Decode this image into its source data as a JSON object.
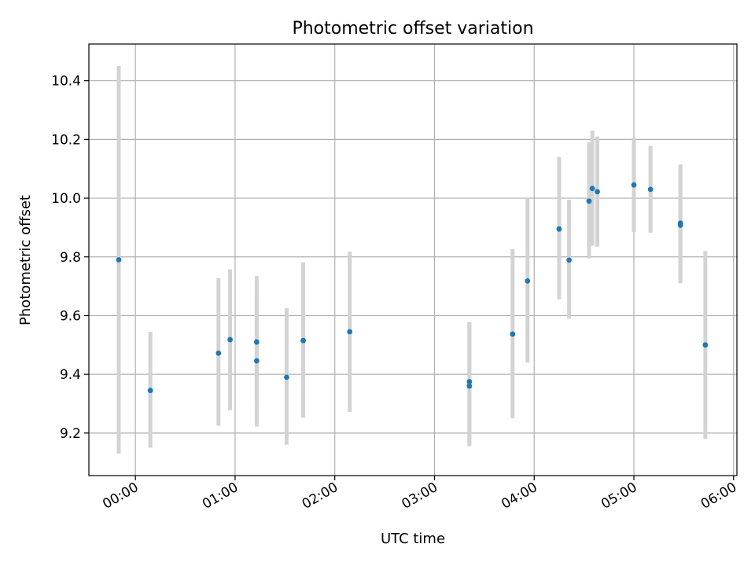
{
  "chart_data": {
    "type": "scatter",
    "title": "Photometric offset variation",
    "xlabel": "UTC time",
    "ylabel": "Photometric offset",
    "xlim": [
      "23:32",
      "06:02"
    ],
    "ylim": [
      9.055,
      10.525
    ],
    "grid": true,
    "x_ticks": [
      "00:00",
      "01:00",
      "02:00",
      "03:00",
      "04:00",
      "05:00",
      "06:00"
    ],
    "y_ticks": [
      9.2,
      9.4,
      9.6,
      9.8,
      10.0,
      10.2,
      10.4
    ],
    "y_tick_labels": [
      "9.2",
      "9.4",
      "9.6",
      "9.8",
      "10.0",
      "10.2",
      "10.4"
    ],
    "points": [
      {
        "time": "23:50",
        "y": 9.79,
        "err_low": 9.13,
        "err_high": 10.45
      },
      {
        "time": "00:09",
        "y": 9.345,
        "err_low": 9.15,
        "err_high": 9.545
      },
      {
        "time": "00:50",
        "y": 9.472,
        "err_low": 9.225,
        "err_high": 9.728
      },
      {
        "time": "00:57",
        "y": 9.518,
        "err_low": 9.278,
        "err_high": 9.758
      },
      {
        "time": "01:13",
        "y": 9.51,
        "err_low": 9.29,
        "err_high": 9.735
      },
      {
        "time": "01:13",
        "y": 9.446,
        "err_low": 9.222,
        "err_high": 9.672
      },
      {
        "time": "01:31",
        "y": 9.39,
        "err_low": 9.16,
        "err_high": 9.625
      },
      {
        "time": "01:41",
        "y": 9.515,
        "err_low": 9.252,
        "err_high": 9.782
      },
      {
        "time": "02:09",
        "y": 9.545,
        "err_low": 9.272,
        "err_high": 9.818
      },
      {
        "time": "03:21",
        "y": 9.36,
        "err_low": 9.155,
        "err_high": 9.575
      },
      {
        "time": "03:21",
        "y": 9.375,
        "err_low": 9.165,
        "err_high": 9.578
      },
      {
        "time": "03:47",
        "y": 9.537,
        "err_low": 9.25,
        "err_high": 9.826
      },
      {
        "time": "03:56",
        "y": 9.718,
        "err_low": 9.44,
        "err_high": 9.998
      },
      {
        "time": "04:15",
        "y": 9.895,
        "err_low": 9.655,
        "err_high": 10.14
      },
      {
        "time": "04:21",
        "y": 9.789,
        "err_low": 9.59,
        "err_high": 9.995
      },
      {
        "time": "04:33",
        "y": 9.99,
        "err_low": 9.795,
        "err_high": 10.19
      },
      {
        "time": "04:35",
        "y": 10.033,
        "err_low": 9.838,
        "err_high": 10.23
      },
      {
        "time": "04:38",
        "y": 10.022,
        "err_low": 9.835,
        "err_high": 10.21
      },
      {
        "time": "05:00",
        "y": 10.045,
        "err_low": 9.885,
        "err_high": 10.205
      },
      {
        "time": "05:10",
        "y": 10.03,
        "err_low": 9.882,
        "err_high": 10.178
      },
      {
        "time": "05:28",
        "y": 9.915,
        "err_low": 9.71,
        "err_high": 10.115
      },
      {
        "time": "05:28",
        "y": 9.908,
        "err_low": 9.72,
        "err_high": 10.1
      },
      {
        "time": "05:43",
        "y": 9.5,
        "err_low": 9.18,
        "err_high": 9.82
      }
    ]
  }
}
